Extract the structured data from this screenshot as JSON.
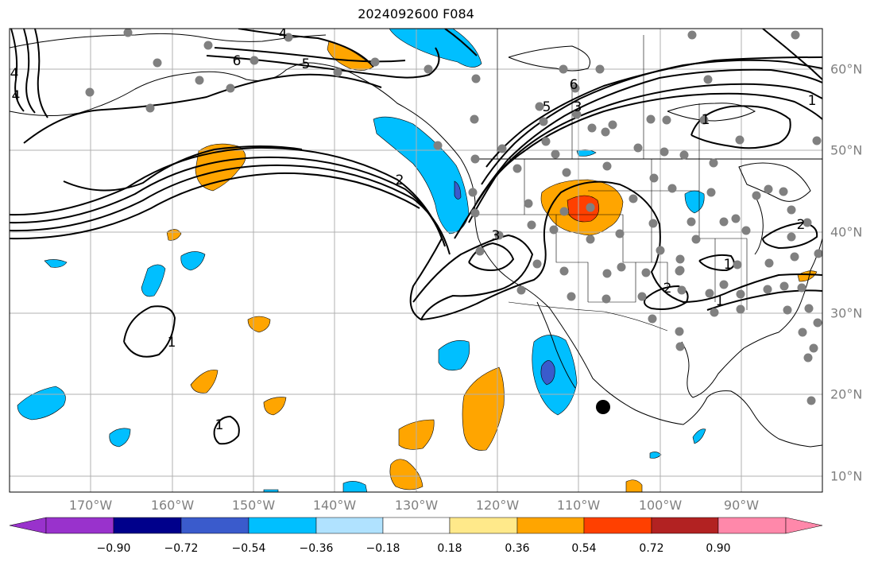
{
  "title": "2024092600 F084",
  "longitude_labels": [
    "170°W",
    "160°W",
    "150°W",
    "140°W",
    "130°W",
    "120°W",
    "110°W",
    "100°W",
    "90°W"
  ],
  "latitude_labels": [
    "60°N",
    "50°N",
    "40°N",
    "30°N",
    "20°N",
    "10°N"
  ],
  "colorbar": {
    "colors": [
      "#9932cc",
      "#00008b",
      "#3a5bcc",
      "#00bfff",
      "#b0e2ff",
      "#ffffff",
      "#ffe98a",
      "#ffa500",
      "#ff4000",
      "#b22222",
      "#ff88aa"
    ],
    "tick_labels": [
      "−0.90",
      "−0.72",
      "−0.54",
      "−0.36",
      "−0.18",
      "0.18",
      "0.36",
      "0.54",
      "0.72",
      "0.90"
    ]
  },
  "contour_labels": [
    "6",
    "5",
    "4",
    "4",
    "4",
    "6",
    "5",
    "3",
    "2",
    "2",
    "1",
    "3",
    "1",
    "2",
    "1",
    "1",
    "1",
    "1"
  ],
  "colors": {
    "positive_1": "#ffa500",
    "positive_2": "#ff4000",
    "negative_1": "#00bfff",
    "negative_2": "#3a5bcc",
    "station_dot": "#808080",
    "grid": "#b0b0b0"
  }
}
